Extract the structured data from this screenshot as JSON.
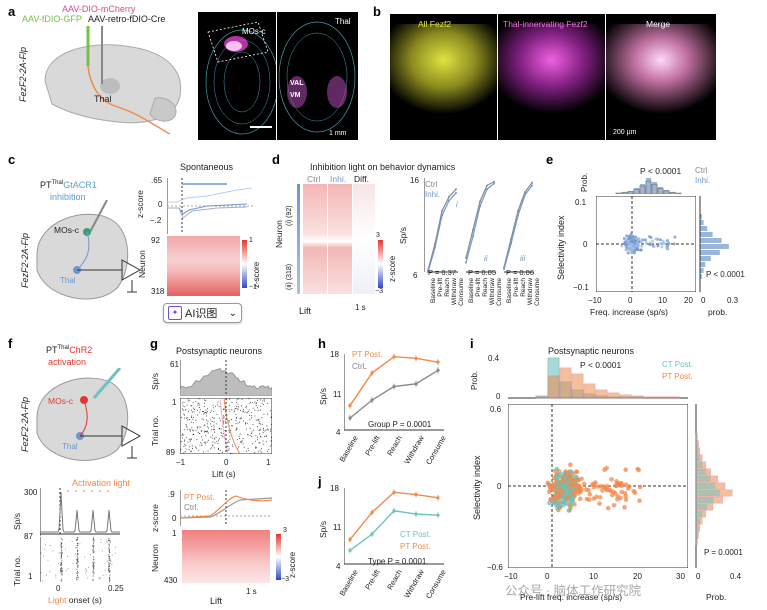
{
  "panels": {
    "a": {
      "letter": "a",
      "virus1": "AAV-DIO-mCherry",
      "virus2": "AAV-fDIO-GFP",
      "virus3": "AAV-retro-fDIO-Cre",
      "mouse_label": "FezF2-2A-Flp",
      "thal_label": "Thal",
      "img1_label": "MOs-c",
      "img2_label": "Thal",
      "val": "VAL",
      "vm": "VM",
      "scale": "1 mm"
    },
    "b": {
      "letter": "b",
      "img1": "All Fezf2",
      "img2": "Thal-innervating Fezf2",
      "img3": "Merge",
      "scale": "200 μm"
    },
    "c": {
      "letter": "c",
      "title": "Spontaneous",
      "construct": "GtACR1",
      "pt": "PT",
      "pt_sup": "Thal",
      "inhibition": "inhibition",
      "mos": "MOs-c",
      "thal": "Thal",
      "mouse": "FezF2-2A-Flp",
      "yticks": [
        ".65",
        "0",
        "−.2"
      ],
      "ylabel": "z-score",
      "neuron_ticks": [
        "92",
        "318"
      ],
      "neuron_label": "Neuron",
      "cbar_ticks": [
        "1",
        "−1"
      ],
      "cbar_label": "z-score",
      "ai_button": "AI识图",
      "chevron": "⌄"
    },
    "d": {
      "letter": "d",
      "title": "Inhibition light on behavior dynamics",
      "head_ctrl": "Ctrl",
      "head_inhi": "Inhi.",
      "head_diff": "Diff.",
      "neuron_label": "Neuron",
      "group1": "(i) (92)",
      "group2": "(ii) (318)",
      "cbar_top": "3",
      "cbar_bot": "−3",
      "cbar_label": "z-score",
      "lift": "Lift",
      "scale": "1 s",
      "legend_ctrl": "Ctrl",
      "legend_inhi": "Inhi.",
      "ylabel": "Sp/s",
      "yticks": [
        "16",
        "6"
      ],
      "roman": [
        "i",
        "ii",
        "iii"
      ],
      "pvals": [
        "P = 0.37",
        "P = 0.05",
        "P = 0.06"
      ],
      "phases": [
        "Baseline",
        "Pre-lift",
        "Reach",
        "Withdraw",
        "Consume"
      ]
    },
    "e": {
      "letter": "e",
      "pval_top": "P < 0.0001",
      "pval_right": "P < 0.0001",
      "legend_ctrl": "Ctrl",
      "legend_inhi": "Inhi.",
      "prob": "Prob.",
      "ylabel": "Selectivity index",
      "xlabel": "Freq. increase (sp/s)",
      "xlabel2": "prob.",
      "xticks": [
        "−10",
        "0",
        "10",
        "20"
      ],
      "yticks": [
        "0.1",
        "0",
        "−0.1"
      ],
      "xticks_right": [
        "0",
        "0.3"
      ]
    },
    "f": {
      "letter": "f",
      "pt": "PT",
      "pt_sup": "Thal",
      "construct": "ChR2",
      "activation": "activation",
      "mos": "MOs-c",
      "thal": "Thal",
      "mouse": "FezF2-2A-Flp",
      "light_label": "Activation light",
      "ylabel_top": "Sp/s",
      "ytick_top": "300",
      "trial_label": "Trial no.",
      "trial_ticks": [
        "87",
        "1"
      ],
      "xticks": [
        "0",
        "0.25"
      ],
      "xlabel": "Light onset (s)",
      "xlabel_light": "Light",
      "xlabel_rest": " onset (s)"
    },
    "g": {
      "letter": "g",
      "title": "Postsynaptic neurons",
      "ylabel_top": "Sp/s",
      "ytick_top": "61",
      "ytick_top0": "0",
      "trial_label": "Trial no.",
      "trial_ticks": [
        "1",
        "89"
      ],
      "xticks": [
        "−1",
        "0",
        "1"
      ],
      "xlabel": "Lift (s)",
      "zticks": [
        ".9",
        "0"
      ],
      "zlabel": "z-score",
      "legend_pt": "PT Post.",
      "legend_ctrl": "Ctrl.",
      "neuron_label": "Neuron",
      "neuron_ticks": [
        "1",
        "430"
      ],
      "cbar_top": "3",
      "cbar_bot": "−3",
      "cbar_label": "z-score",
      "lift": "Lift",
      "scale": "1 s"
    },
    "h": {
      "letter": "h",
      "legend_pt": "PT Post.",
      "legend_ctrl": "CtrL",
      "ylabel": "Sp/s",
      "yticks": [
        "18",
        "11",
        "4"
      ],
      "pval": "Group P = 0.0001",
      "phases": [
        "Baseline",
        "Pre-lift",
        "Reach",
        "Withdraw",
        "Consume"
      ]
    },
    "i": {
      "letter": "i",
      "title": "Postsynaptic neurons",
      "pval_top": "P < 0.0001",
      "pval_right": "P = 0.0001",
      "legend_ct": "CT Post.",
      "legend_pt": "PT Post.",
      "prob": "Prob.",
      "prob_ticks": [
        "0.4",
        "0"
      ],
      "ylabel": "Selectivity index",
      "yticks": [
        "0.6",
        "0",
        "−0.6"
      ],
      "xlabel": "Pre-lift freq. increase (sp/s)",
      "xticks": [
        "−10",
        "0",
        "10",
        "20",
        "30"
      ],
      "xticks_right": [
        "0",
        "0.4"
      ],
      "xlabel2": "Prob."
    },
    "j": {
      "letter": "j",
      "legend_ct": "CT Post.",
      "legend_pt": "PT Post.",
      "ylabel": "Sp/s",
      "yticks": [
        "18",
        "11",
        "4"
      ],
      "pval": "Type P = 0.0001",
      "phases": [
        "Baseline",
        "Pre-lift",
        "Reach",
        "Withdraw",
        "Consume"
      ]
    }
  },
  "watermark": "公众号 · 脑体工作研究院",
  "colors": {
    "orange": "#f08a4b",
    "gray": "#8a8a8a",
    "blue": "#6f97cc",
    "lightblue": "#a9c1e3",
    "teal": "#6cc2bd",
    "green": "#8ed35a",
    "magenta": "#e040c8",
    "red": "#e4362f"
  },
  "chart_data": [
    {
      "type": "line",
      "panel": "h",
      "categories": [
        "Baseline",
        "Pre-lift",
        "Reach",
        "Withdraw",
        "Consume"
      ],
      "series": [
        {
          "name": "PT Post.",
          "values": [
            8.5,
            14.5,
            17.5,
            17.2,
            16.5
          ]
        },
        {
          "name": "CtrL",
          "values": [
            6.2,
            9.5,
            12.0,
            12.5,
            15.0
          ]
        }
      ],
      "ylim": [
        4,
        18
      ]
    },
    {
      "type": "line",
      "panel": "j",
      "categories": [
        "Baseline",
        "Pre-lift",
        "Reach",
        "Withdraw",
        "Consume"
      ],
      "series": [
        {
          "name": "CT Post.",
          "values": [
            6.5,
            9.5,
            13.8,
            13.2,
            13.0
          ]
        },
        {
          "name": "PT Post.",
          "values": [
            8.5,
            13.5,
            17.2,
            16.8,
            16.2
          ]
        }
      ],
      "ylim": [
        4,
        18
      ]
    },
    {
      "type": "line",
      "panel": "d",
      "subpanels": [
        {
          "roman": "i",
          "series": [
            {
              "name": "Ctrl",
              "values": [
                6.2,
                9.0,
                12.5,
                14.0,
                14.8
              ]
            },
            {
              "name": "Inhi.",
              "values": [
                6.0,
                8.6,
                12.0,
                13.6,
                14.4
              ]
            }
          ]
        },
        {
          "roman": "ii",
          "series": [
            {
              "name": "Ctrl",
              "values": [
                7.5,
                10.5,
                13.5,
                15.2,
                15.6
              ]
            },
            {
              "name": "Inhi.",
              "values": [
                7.0,
                9.8,
                13.0,
                14.8,
                15.4
              ]
            }
          ]
        },
        {
          "roman": "iii",
          "series": [
            {
              "name": "Ctrl",
              "values": [
                6.5,
                9.5,
                12.5,
                14.5,
                15.5
              ]
            },
            {
              "name": "Inhi.",
              "values": [
                6.3,
                9.0,
                12.0,
                14.2,
                15.2
              ]
            }
          ]
        }
      ],
      "ylim": [
        6,
        16
      ]
    }
  ]
}
